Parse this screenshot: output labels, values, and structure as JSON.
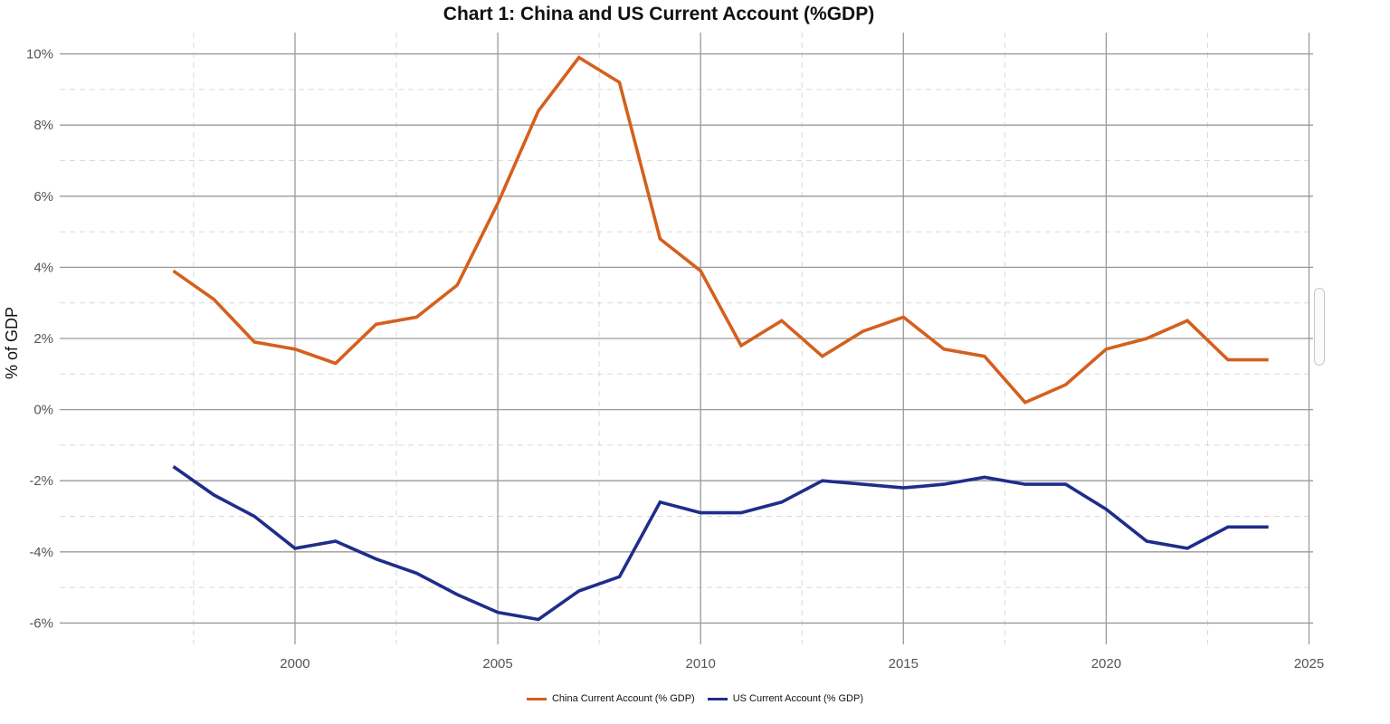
{
  "chart_data": {
    "type": "line",
    "title": "Chart 1: China and US Current Account (%GDP)",
    "xlabel": "",
    "ylabel": "% of GDP",
    "x": [
      1997,
      1998,
      1999,
      2000,
      2001,
      2002,
      2003,
      2004,
      2005,
      2006,
      2007,
      2008,
      2009,
      2010,
      2011,
      2012,
      2013,
      2014,
      2015,
      2016,
      2017,
      2018,
      2019,
      2020,
      2021,
      2022,
      2023,
      2024
    ],
    "xlim": [
      1994.2,
      2025.1
    ],
    "ylim": [
      -6.6,
      10.6
    ],
    "x_ticks": [
      2000,
      2005,
      2010,
      2015,
      2020,
      2025
    ],
    "y_ticks": [
      -6,
      -4,
      -2,
      0,
      2,
      4,
      6,
      8,
      10
    ],
    "y_tick_labels": [
      "-6%",
      "-4%",
      "-2%",
      "0%",
      "2%",
      "4%",
      "6%",
      "8%",
      "10%"
    ],
    "grid": true,
    "legend_position": "bottom",
    "series": [
      {
        "name": "China Current Account (% GDP)",
        "color": "#D4601E",
        "values": [
          3.9,
          3.1,
          1.9,
          1.7,
          1.3,
          2.4,
          2.6,
          3.5,
          5.8,
          8.4,
          9.9,
          9.2,
          4.8,
          3.9,
          1.8,
          2.5,
          1.5,
          2.2,
          2.6,
          1.7,
          1.5,
          0.2,
          0.7,
          1.7,
          2.0,
          2.5,
          1.4,
          1.4
        ]
      },
      {
        "name": "US Current Account (% GDP)",
        "color": "#1F2D8A",
        "values": [
          -1.6,
          -2.4,
          -3.0,
          -3.9,
          -3.7,
          -4.2,
          -4.6,
          -5.2,
          -5.7,
          -5.9,
          -5.1,
          -4.7,
          -2.6,
          -2.9,
          -2.9,
          -2.6,
          -2.0,
          -2.1,
          -2.2,
          -2.1,
          -1.9,
          -2.1,
          -2.1,
          -2.8,
          -3.7,
          -3.9,
          -3.3,
          -3.3
        ]
      }
    ]
  }
}
